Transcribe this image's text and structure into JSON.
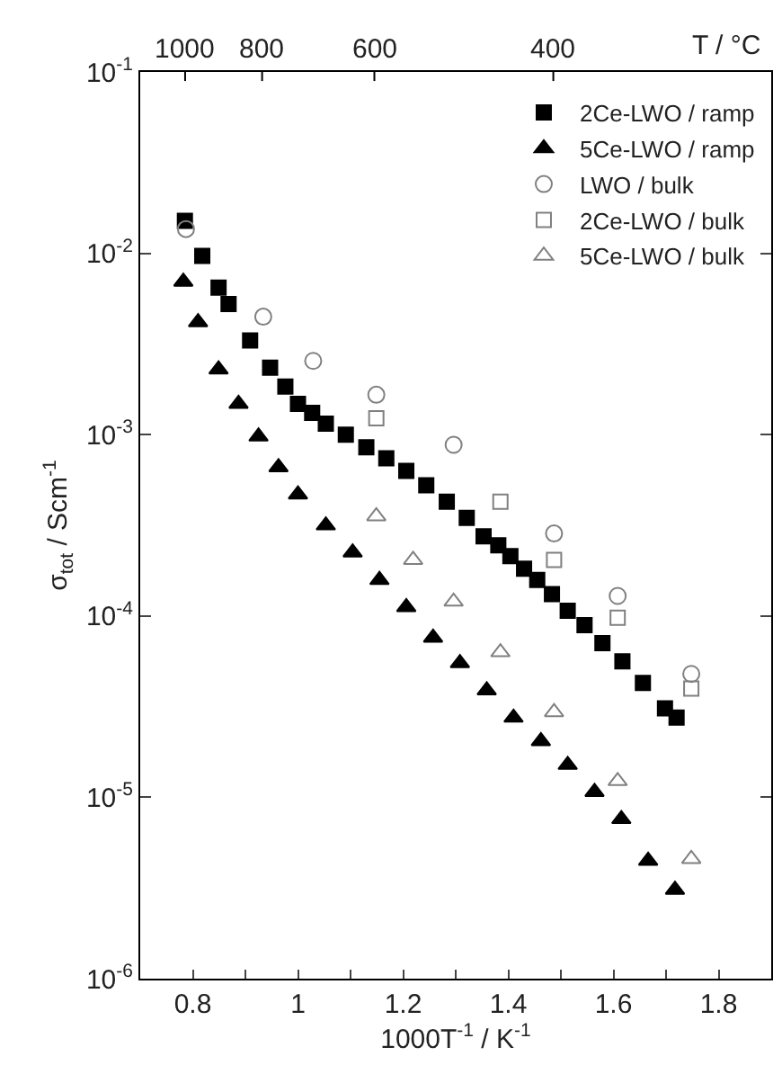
{
  "chart_data": {
    "type": "scatter",
    "xlabel": "1000T$^{-1}$ / K$^{-1}$",
    "ylabel": "σ$_{tot}$ / Scm$^{-1}$",
    "annotations": [
      {
        "text": "1000",
        "x": 0.7854
      },
      {
        "text": "800",
        "x": 0.9318
      },
      {
        "text": "600",
        "x": 1.1453
      },
      {
        "text": "400",
        "x": 1.4856
      },
      "T / °C"
    ],
    "xlim": [
      0.7,
      1.9
    ],
    "xticks": [
      0.8,
      {
        "value": 0.9,
        "label": null
      },
      1,
      {
        "value": 1.1,
        "label": null
      },
      1.2,
      {
        "value": 1.3,
        "label": null
      },
      1.4,
      {
        "value": 1.5,
        "label": null
      },
      1.6,
      {
        "value": 1.7,
        "label": null
      },
      1.8
    ],
    "ylim": [
      1e-06,
      0.1
    ],
    "yticks": [
      {
        "value": 1e-06,
        "label": "10$^{-6}$"
      },
      {
        "value": 1e-05,
        "label": "10$^{-5}$"
      },
      {
        "value": 0.0001,
        "label": "10$^{-4}$"
      },
      {
        "value": 0.001,
        "label": "10$^{-3}$"
      },
      {
        "value": 0.01,
        "label": "10$^{-2}$"
      },
      {
        "value": 0.1,
        "label": "10$^{-1}$"
      }
    ],
    "log": "y",
    "legend": "top right",
    "series": [
      {
        "name": "2Ce-LWO / ramp",
        "color": "#000000",
        "marker": "square",
        "x": [
          0.785,
          0.818,
          0.849,
          0.868,
          0.909,
          0.947,
          0.976,
          1.0,
          1.027,
          1.053,
          1.091,
          1.13,
          1.168,
          1.206,
          1.244,
          1.283,
          1.321,
          1.353,
          1.381,
          1.404,
          1.43,
          1.455,
          1.483,
          1.513,
          1.545,
          1.579,
          1.617,
          1.656,
          1.698,
          1.72
        ],
        "values": [
          0.0151,
          0.00966,
          0.00646,
          0.00525,
          0.00331,
          0.00234,
          0.00184,
          0.00148,
          0.00132,
          0.00115,
          0.001,
          0.000851,
          0.000741,
          0.000631,
          0.000525,
          0.000427,
          0.000347,
          0.000275,
          0.000245,
          0.000214,
          0.000182,
          0.000158,
          0.000132,
          0.000107,
          8.91e-05,
          7.08e-05,
          5.62e-05,
          4.27e-05,
          3.09e-05,
          2.75e-05
        ]
      },
      {
        "name": "5Ce-LWO / ramp",
        "color": "#000000",
        "marker": "triangle",
        "x": [
          0.782,
          0.81,
          0.849,
          0.887,
          0.925,
          0.963,
          1.0,
          1.053,
          1.104,
          1.155,
          1.206,
          1.257,
          1.308,
          1.359,
          1.41,
          1.462,
          1.513,
          1.564,
          1.615,
          1.666,
          1.717
        ],
        "values": [
          0.00697,
          0.00417,
          0.00229,
          0.00148,
          0.000977,
          0.000661,
          0.000468,
          0.000316,
          0.000224,
          0.000158,
          0.000112,
          7.59e-05,
          5.5e-05,
          3.89e-05,
          2.75e-05,
          2.04e-05,
          1.51e-05,
          1.07e-05,
          7.59e-06,
          4.47e-06,
          3.09e-06
        ]
      },
      {
        "name": "LWO / bulk",
        "color": "#808080",
        "marker": "circle-open",
        "x": [
          0.787,
          0.934,
          1.029,
          1.149,
          1.296,
          1.487,
          1.608,
          1.748
        ],
        "values": [
          0.0136,
          0.00447,
          0.00255,
          0.00166,
          0.000879,
          0.000285,
          0.000129,
          4.79e-05
        ]
      },
      {
        "name": "2Ce-LWO / bulk",
        "color": "#808080",
        "marker": "square-open",
        "x": [
          1.149,
          1.385,
          1.487,
          1.608,
          1.748
        ],
        "values": [
          0.00123,
          0.000427,
          0.000204,
          9.77e-05,
          3.98e-05
        ]
      },
      {
        "name": "5Ce-LWO / bulk",
        "color": "#808080",
        "marker": "triangle-open",
        "x": [
          1.149,
          1.219,
          1.296,
          1.385,
          1.487,
          1.608,
          1.748
        ],
        "values": [
          0.000355,
          0.000204,
          0.00012,
          6.31e-05,
          2.95e-05,
          1.23e-05,
          4.57e-06
        ]
      }
    ]
  }
}
